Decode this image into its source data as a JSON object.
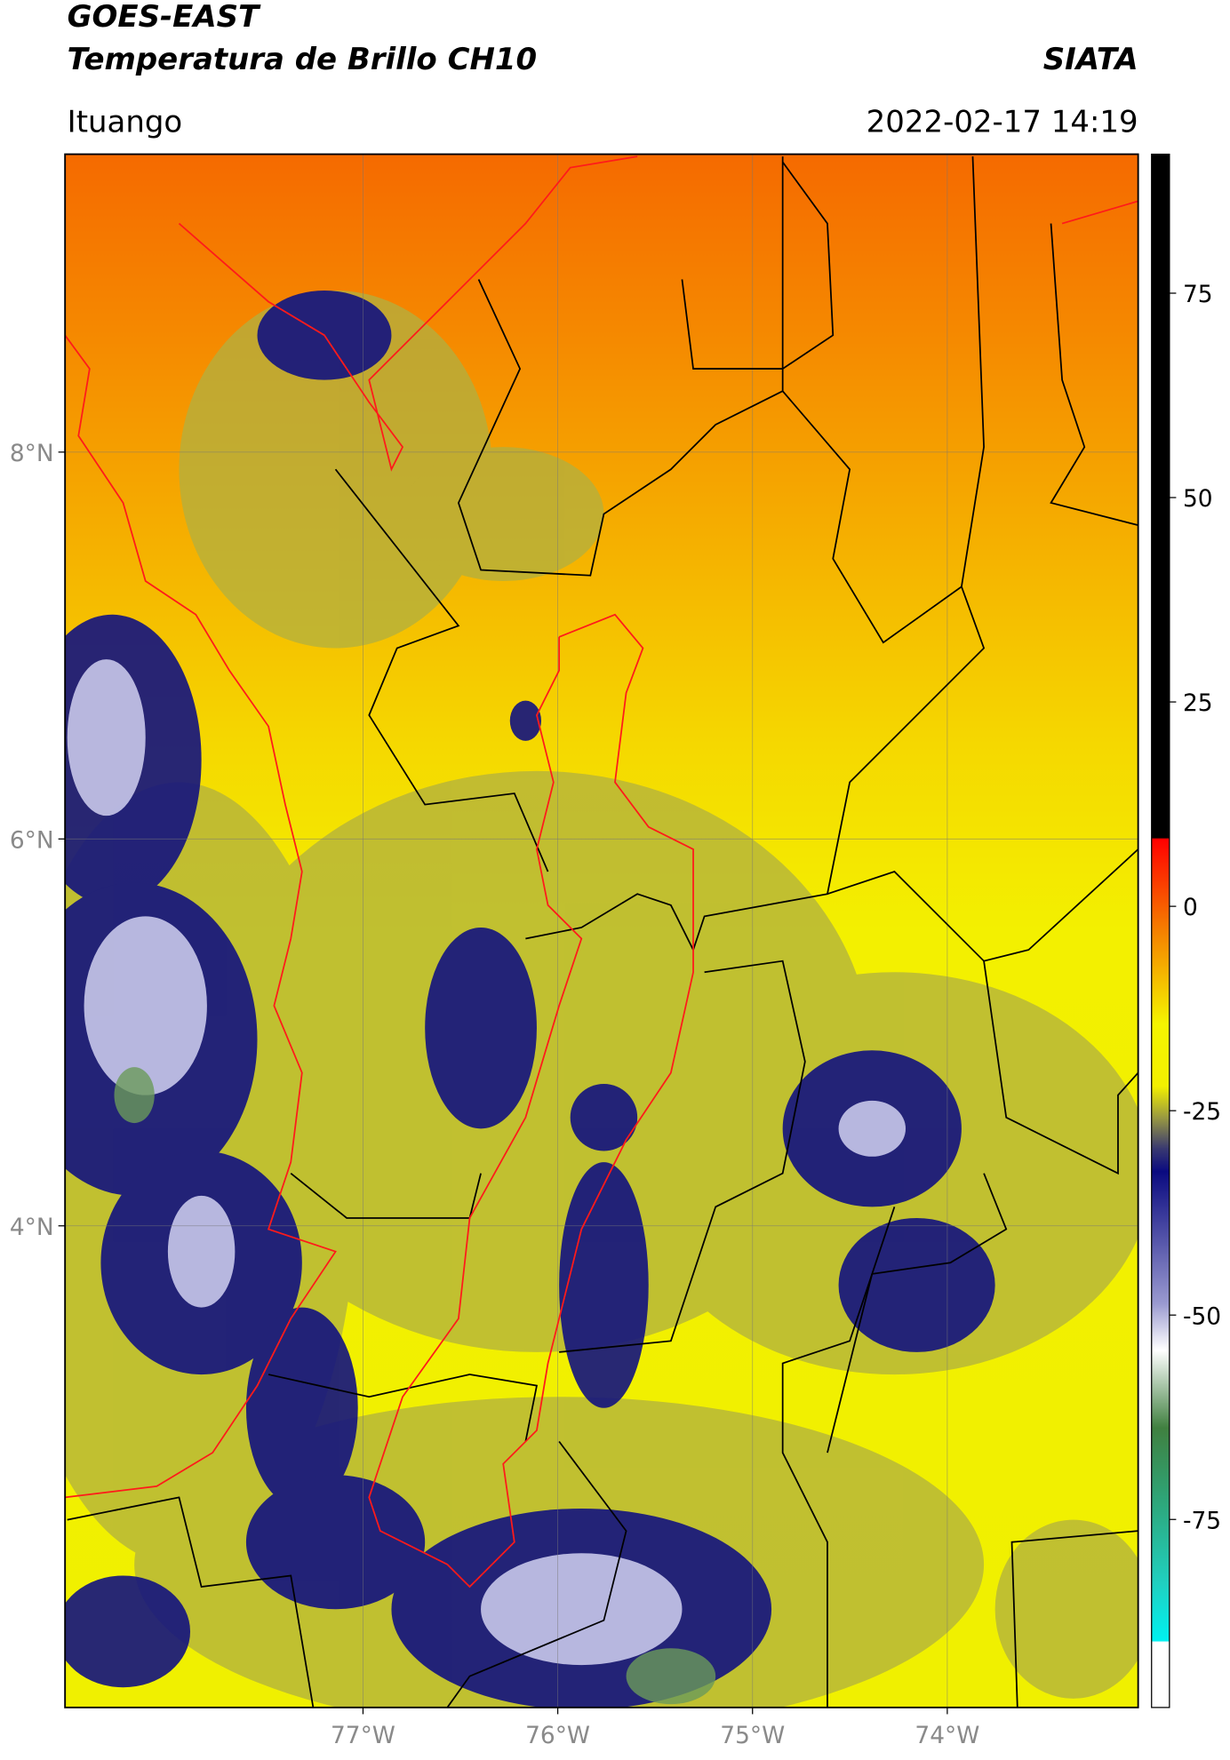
{
  "header": {
    "satellite": "GOES-EAST",
    "product": "Temperatura de Brillo CH10",
    "brand": "SIATA",
    "region": "Ituango",
    "datetime": "2022-02-17 14:19"
  },
  "map": {
    "xlim": [
      -78.53,
      -73.02
    ],
    "ylim": [
      1.51,
      9.54
    ],
    "grid": true,
    "xticks": [
      {
        "value": -77,
        "label": "77°W"
      },
      {
        "value": -76,
        "label": "76°W"
      },
      {
        "value": -75,
        "label": "75°W"
      },
      {
        "value": -74,
        "label": "74°W"
      }
    ],
    "yticks": [
      {
        "value": 8,
        "label": "8°N"
      },
      {
        "value": 6,
        "label": "6°N"
      },
      {
        "value": 4,
        "label": "4°N"
      }
    ]
  },
  "colorbar": {
    "lim": [
      -98,
      92
    ],
    "ticks": [
      75,
      50,
      25,
      0,
      -25,
      -50,
      -75
    ]
  }
}
